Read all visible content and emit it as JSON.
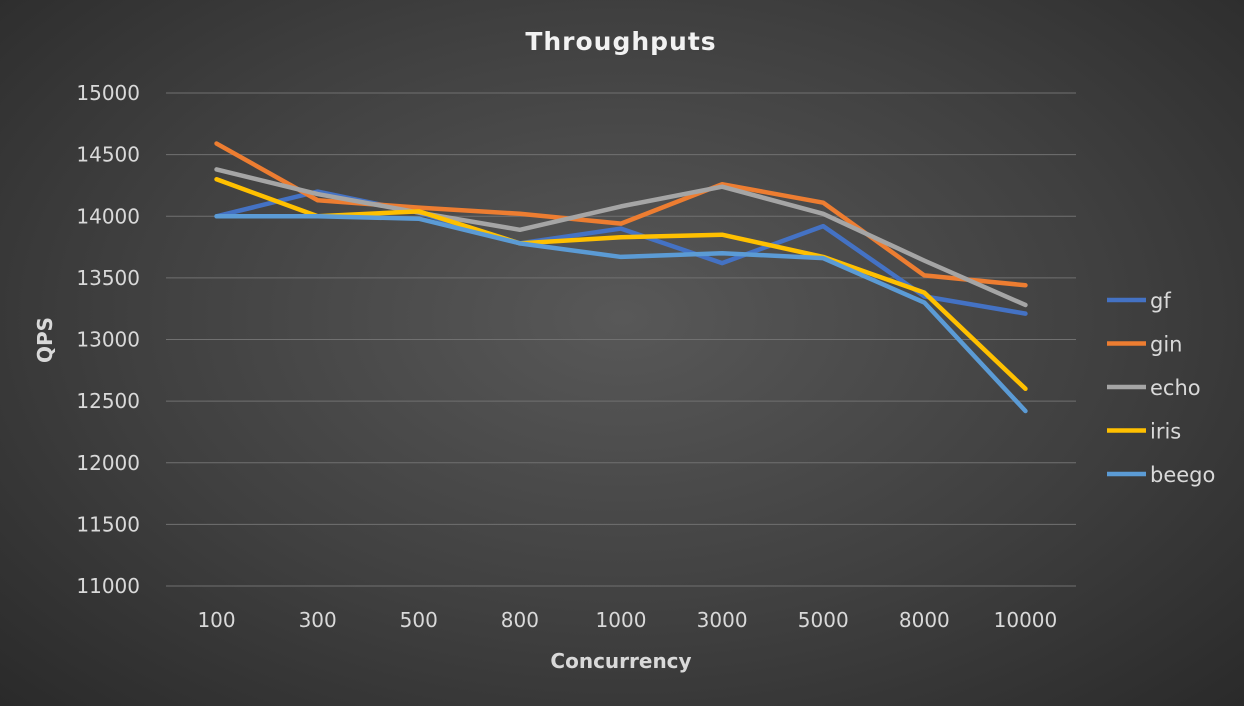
{
  "chart_data": {
    "type": "line",
    "title": "Throughputs",
    "xlabel": "Concurrency",
    "ylabel": "QPS",
    "categories": [
      "100",
      "300",
      "500",
      "800",
      "1000",
      "3000",
      "5000",
      "8000",
      "10000"
    ],
    "ylim": [
      11000,
      15000
    ],
    "yticks": [
      11000,
      11500,
      12000,
      12500,
      13000,
      13500,
      14000,
      14500,
      15000
    ],
    "grid": true,
    "legend_position": "right",
    "series": [
      {
        "name": "gf",
        "color": "#4472C4",
        "values": [
          14000,
          14200,
          14030,
          13780,
          13900,
          13620,
          13920,
          13350,
          13210
        ]
      },
      {
        "name": "gin",
        "color": "#ED7D31",
        "values": [
          14590,
          14130,
          14070,
          14020,
          13940,
          14260,
          14110,
          13520,
          13440
        ]
      },
      {
        "name": "echo",
        "color": "#A5A5A5",
        "values": [
          14380,
          14180,
          14030,
          13890,
          14080,
          14240,
          14020,
          13640,
          13280
        ]
      },
      {
        "name": "iris",
        "color": "#FFC000",
        "values": [
          14300,
          14000,
          14040,
          13780,
          13830,
          13850,
          13670,
          13380,
          12600
        ]
      },
      {
        "name": "beego",
        "color": "#5B9BD5",
        "values": [
          14000,
          14000,
          13980,
          13780,
          13670,
          13700,
          13660,
          13300,
          12420
        ]
      }
    ]
  }
}
